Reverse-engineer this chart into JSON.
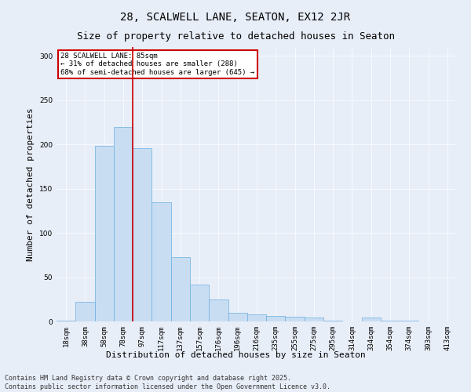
{
  "title1": "28, SCALWELL LANE, SEATON, EX12 2JR",
  "title2": "Size of property relative to detached houses in Seaton",
  "xlabel": "Distribution of detached houses by size in Seaton",
  "ylabel": "Number of detached properties",
  "categories": [
    "18sqm",
    "38sqm",
    "58sqm",
    "78sqm",
    "97sqm",
    "117sqm",
    "137sqm",
    "157sqm",
    "176sqm",
    "196sqm",
    "216sqm",
    "235sqm",
    "255sqm",
    "275sqm",
    "295sqm",
    "314sqm",
    "334sqm",
    "354sqm",
    "374sqm",
    "393sqm",
    "413sqm"
  ],
  "values": [
    1,
    22,
    198,
    220,
    196,
    135,
    73,
    42,
    25,
    10,
    8,
    6,
    5,
    4,
    1,
    0,
    4,
    1,
    1,
    0,
    0
  ],
  "bar_color": "#c9ddf2",
  "bar_edge_color": "#6aaee0",
  "vline_x": 3.5,
  "vline_color": "#cc0000",
  "annotation_text": "28 SCALWELL LANE: 85sqm\n← 31% of detached houses are smaller (288)\n68% of semi-detached houses are larger (645) →",
  "annotation_box_color": "#cc0000",
  "footer": "Contains HM Land Registry data © Crown copyright and database right 2025.\nContains public sector information licensed under the Open Government Licence v3.0.",
  "ylim": [
    0,
    310
  ],
  "yticks": [
    0,
    50,
    100,
    150,
    200,
    250,
    300
  ],
  "background_color": "#e8eef8",
  "plot_background": "#e8eef8",
  "title1_fontsize": 10,
  "title2_fontsize": 9,
  "xlabel_fontsize": 8,
  "ylabel_fontsize": 8,
  "tick_fontsize": 6.5,
  "footer_fontsize": 6
}
